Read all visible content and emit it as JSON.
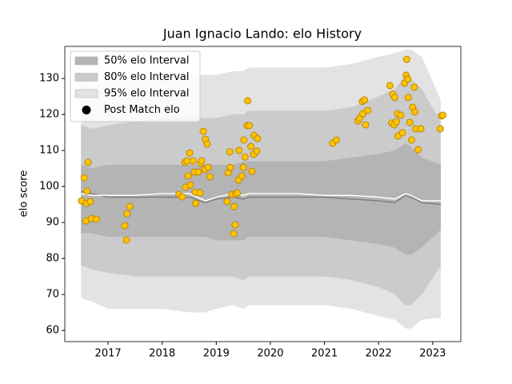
{
  "chart_data": {
    "type": "scatter",
    "title": "Juan Ignacio Lando: elo History",
    "ylabel": "elo score",
    "xlim": [
      2016.2,
      2023.52
    ],
    "ylim": [
      56.9,
      138.9
    ],
    "xticks": [
      2017,
      2018,
      2019,
      2020,
      2021,
      2022,
      2023
    ],
    "yticks": [
      60,
      70,
      80,
      90,
      100,
      110,
      120,
      130
    ],
    "legend": "upper left",
    "band_x": [
      2016.5,
      2016.7,
      2017.0,
      2017.5,
      2018.0,
      2018.5,
      2018.8,
      2019.0,
      2019.3,
      2019.5,
      2019.6,
      2020.0,
      2020.5,
      2021.0,
      2021.5,
      2022.0,
      2022.3,
      2022.5,
      2022.6,
      2022.8,
      2023.15
    ],
    "bands": [
      {
        "name": "95% elo Interval",
        "color": "#e3e3e3",
        "upper": [
          129,
          128,
          129,
          130,
          131,
          131,
          131,
          131,
          132,
          132,
          133,
          133,
          133,
          133,
          134,
          136,
          137,
          138,
          138,
          136,
          124
        ],
        "lower": [
          69,
          68,
          66,
          66,
          66,
          65,
          65,
          66,
          67,
          66,
          67,
          67,
          67,
          67,
          66,
          64,
          63,
          60.5,
          60.5,
          63,
          63.5
        ]
      },
      {
        "name": "80% elo Interval",
        "color": "#cbcbcb",
        "upper": [
          117,
          116,
          117,
          118,
          119,
          119,
          119,
          119,
          120,
          120,
          121,
          121,
          121,
          121,
          122,
          125,
          127,
          131,
          130,
          127,
          118
        ],
        "lower": [
          78,
          77,
          76,
          75,
          75,
          75,
          75,
          75,
          75,
          74,
          75,
          75,
          75,
          75,
          74,
          72,
          70,
          67,
          67,
          70,
          78
        ]
      },
      {
        "name": "50% elo Interval",
        "color": "#b4b4b4",
        "upper": [
          106,
          105,
          106,
          106,
          106,
          106,
          106,
          106,
          106,
          107,
          107,
          107,
          107,
          107,
          108,
          109,
          110,
          112,
          111,
          108,
          106
        ],
        "lower": [
          87,
          87,
          86,
          86,
          86,
          86,
          86,
          85,
          85,
          85,
          86,
          86,
          86,
          86,
          85,
          84,
          83,
          81,
          81,
          83,
          88
        ]
      }
    ],
    "lines": [
      {
        "color": "#808080",
        "values": [
          98.5,
          98,
          97,
          97,
          97,
          97,
          95.5,
          96.5,
          97,
          96.5,
          97,
          97,
          97,
          97,
          96.5,
          96,
          95.5,
          97.5,
          97,
          95.5,
          95
        ]
      },
      {
        "color": "#ffffff",
        "values": [
          98,
          97.5,
          97.5,
          97.5,
          98,
          98,
          96,
          97,
          98,
          97.5,
          98,
          98,
          98,
          97.5,
          97.5,
          97,
          96.5,
          98,
          97.5,
          96,
          96
        ]
      }
    ],
    "series": [
      {
        "name": "Post Match elo",
        "color": "#ffc400",
        "edgecolor": "#b8860b",
        "legend_color": "#000000",
        "x": [
          2016.51,
          2016.56,
          2016.59,
          2016.6,
          2016.61,
          2016.63,
          2016.67,
          2016.69,
          2016.78,
          2017.31,
          2017.34,
          2017.35,
          2017.4,
          2018.31,
          2018.37,
          2018.42,
          2018.43,
          2018.46,
          2018.48,
          2018.51,
          2018.52,
          2018.57,
          2018.6,
          2018.61,
          2018.62,
          2018.67,
          2018.7,
          2018.71,
          2018.73,
          2018.76,
          2018.79,
          2018.8,
          2018.83,
          2018.85,
          2018.88,
          2019.2,
          2019.22,
          2019.25,
          2019.26,
          2019.29,
          2019.32,
          2019.33,
          2019.35,
          2019.36,
          2019.39,
          2019.41,
          2019.42,
          2019.47,
          2019.5,
          2019.51,
          2019.53,
          2019.57,
          2019.58,
          2019.61,
          2019.64,
          2019.66,
          2019.69,
          2019.7,
          2019.75,
          2019.76,
          2021.15,
          2021.22,
          2021.62,
          2021.65,
          2021.7,
          2021.71,
          2021.74,
          2021.76,
          2021.8,
          2022.21,
          2022.24,
          2022.26,
          2022.29,
          2022.3,
          2022.33,
          2022.35,
          2022.36,
          2022.41,
          2022.44,
          2022.48,
          2022.51,
          2022.52,
          2022.54,
          2022.55,
          2022.58,
          2022.61,
          2022.63,
          2022.66,
          2022.67,
          2022.69,
          2022.73,
          2022.78,
          2023.14,
          2023.16,
          2023.19
        ],
        "values": [
          96.0,
          102.4,
          90.4,
          95.3,
          98.7,
          106.7,
          95.8,
          91.1,
          90.9,
          89.1,
          85.1,
          92.4,
          94.4,
          97.8,
          97.1,
          106.7,
          99.8,
          107.1,
          102.9,
          109.3,
          100.4,
          107.1,
          104.0,
          98.4,
          95.3,
          104.0,
          98.2,
          106.4,
          107.1,
          115.3,
          104.7,
          113.1,
          111.8,
          105.3,
          102.7,
          95.8,
          103.8,
          109.6,
          105.3,
          97.8,
          86.9,
          94.4,
          89.3,
          97.8,
          98.2,
          101.8,
          110.0,
          102.9,
          105.3,
          112.9,
          108.2,
          116.9,
          123.8,
          116.9,
          111.1,
          104.2,
          108.9,
          114.2,
          109.8,
          113.3,
          112.0,
          112.9,
          118.2,
          118.9,
          123.6,
          120.2,
          124.0,
          117.1,
          121.1,
          128.0,
          117.6,
          125.6,
          117.1,
          124.7,
          118.0,
          120.2,
          114.0,
          119.8,
          114.9,
          128.7,
          130.9,
          135.3,
          129.8,
          124.7,
          117.8,
          112.9,
          122.0,
          127.6,
          120.7,
          116.0,
          110.2,
          116.0,
          116.0,
          119.6,
          119.8
        ]
      }
    ]
  }
}
